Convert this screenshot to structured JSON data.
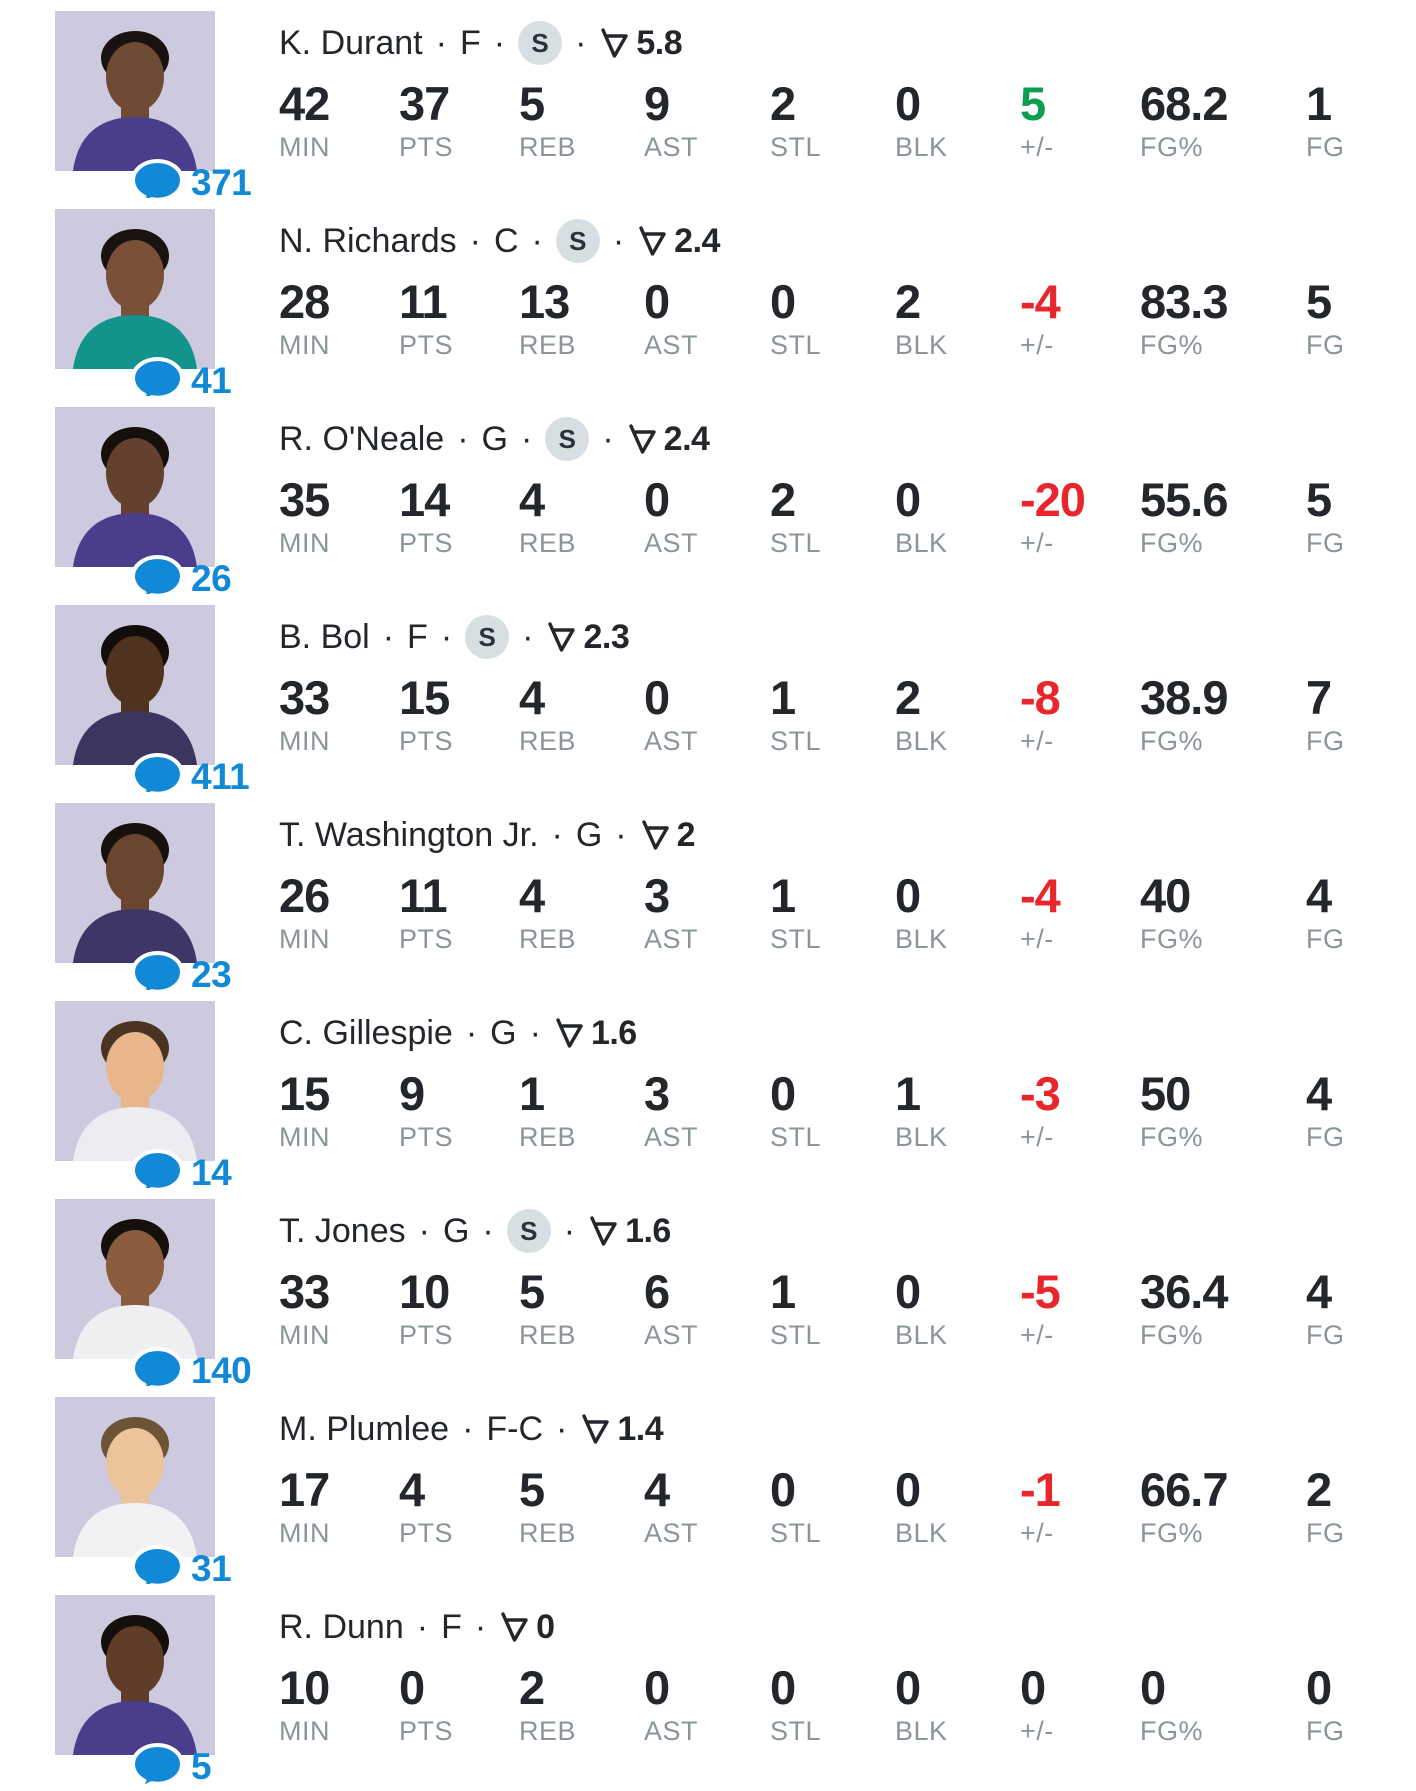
{
  "ui": {
    "dot": "·",
    "starter_badge_letter": "S"
  },
  "colors": {
    "accent_blue": "#1289d6",
    "positive_green": "#0b9e4f",
    "negative_red": "#e8262c",
    "text_dark": "#23272b",
    "label_gray": "#8b959a",
    "starter_badge_bg": "#d8dfe3",
    "avatar_bg": "#cdcae0"
  },
  "stat_labels": [
    "MIN",
    "PTS",
    "REB",
    "AST",
    "STL",
    "BLK",
    "+/-",
    "FG%",
    "FG"
  ],
  "players": [
    {
      "name": "K. Durant",
      "position": "F",
      "starter": true,
      "fantasy": "5.8",
      "comments": "371",
      "values": [
        "42",
        "37",
        "5",
        "9",
        "2",
        "0",
        "5",
        "68.2",
        "1"
      ],
      "pm_trend": "pos",
      "avatar": {
        "skin": "#6f4a33",
        "jersey": "#4a3d8c",
        "hair": "#191210"
      }
    },
    {
      "name": "N. Richards",
      "position": "C",
      "starter": true,
      "fantasy": "2.4",
      "comments": "41",
      "values": [
        "28",
        "11",
        "13",
        "0",
        "0",
        "2",
        "-4",
        "83.3",
        "5"
      ],
      "pm_trend": "neg",
      "avatar": {
        "skin": "#7a5138",
        "jersey": "#12948c",
        "hair": "#1a120e"
      }
    },
    {
      "name": "R. O'Neale",
      "position": "G",
      "starter": true,
      "fantasy": "2.4",
      "comments": "26",
      "values": [
        "35",
        "14",
        "4",
        "0",
        "2",
        "0",
        "-20",
        "55.6",
        "5"
      ],
      "pm_trend": "neg",
      "avatar": {
        "skin": "#63412e",
        "jersey": "#4a3d8c",
        "hair": "#15100c"
      }
    },
    {
      "name": "B. Bol",
      "position": "F",
      "starter": true,
      "fantasy": "2.3",
      "comments": "411",
      "values": [
        "33",
        "15",
        "4",
        "0",
        "1",
        "2",
        "-8",
        "38.9",
        "7"
      ],
      "pm_trend": "neg",
      "avatar": {
        "skin": "#4f331f",
        "jersey": "#3c3560",
        "hair": "#120d0a"
      }
    },
    {
      "name": "T. Washington Jr.",
      "position": "G",
      "starter": false,
      "fantasy": "2",
      "comments": "23",
      "values": [
        "26",
        "11",
        "4",
        "3",
        "1",
        "0",
        "-4",
        "40",
        "4"
      ],
      "pm_trend": "neg",
      "avatar": {
        "skin": "#6b462f",
        "jersey": "#3f3566",
        "hair": "#17100c"
      }
    },
    {
      "name": "C. Gillespie",
      "position": "G",
      "starter": false,
      "fantasy": "1.6",
      "comments": "14",
      "values": [
        "15",
        "9",
        "1",
        "3",
        "0",
        "1",
        "-3",
        "50",
        "4"
      ],
      "pm_trend": "neg",
      "avatar": {
        "skin": "#e9b68c",
        "jersey": "#ececf2",
        "hair": "#4a3321"
      }
    },
    {
      "name": "T. Jones",
      "position": "G",
      "starter": true,
      "fantasy": "1.6",
      "comments": "140",
      "values": [
        "33",
        "10",
        "5",
        "6",
        "1",
        "0",
        "-5",
        "36.4",
        "4"
      ],
      "pm_trend": "neg",
      "avatar": {
        "skin": "#8a5c3b",
        "jersey": "#f0f0f3",
        "hair": "#16100c"
      }
    },
    {
      "name": "M. Plumlee",
      "position": "F-C",
      "starter": false,
      "fantasy": "1.4",
      "comments": "31",
      "values": [
        "17",
        "4",
        "5",
        "4",
        "0",
        "0",
        "-1",
        "66.7",
        "2"
      ],
      "pm_trend": "neg",
      "avatar": {
        "skin": "#ecc39b",
        "jersey": "#f2f1f4",
        "hair": "#6e5436"
      }
    },
    {
      "name": "R. Dunn",
      "position": "F",
      "starter": false,
      "fantasy": "0",
      "comments": "5",
      "values": [
        "10",
        "0",
        "2",
        "0",
        "0",
        "0",
        "0",
        "0",
        "0"
      ],
      "pm_trend": "neu",
      "avatar": {
        "skin": "#5f3d28",
        "jersey": "#4a3d8c",
        "hair": "#140f0b"
      }
    }
  ]
}
